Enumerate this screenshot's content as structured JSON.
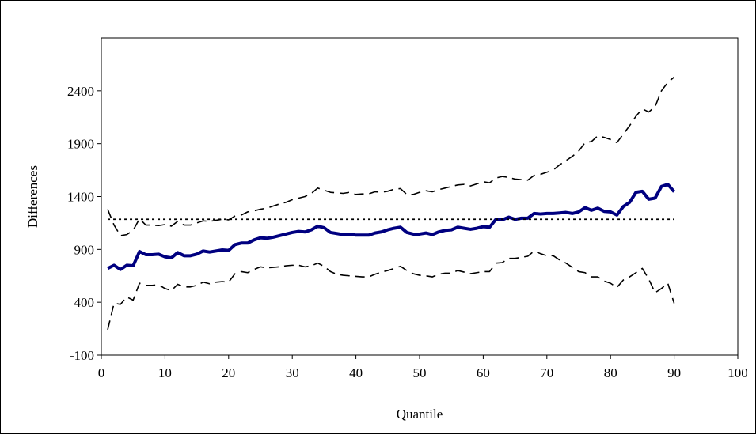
{
  "chart_data": {
    "type": "line",
    "title": "",
    "xlabel": "Quantile",
    "ylabel": "Differences",
    "xlim": [
      0,
      100
    ],
    "ylim": [
      -100,
      2900
    ],
    "xticks": [
      0,
      10,
      20,
      30,
      40,
      50,
      60,
      70,
      80,
      90,
      100
    ],
    "yticks": [
      -100,
      400,
      900,
      1400,
      1900,
      2400
    ],
    "grid": false,
    "legend": "none",
    "series": [
      {
        "style": "solid-thick",
        "color": "#000080",
        "points": [
          [
            1,
            720
          ],
          [
            2,
            750
          ],
          [
            3,
            710
          ],
          [
            4,
            750
          ],
          [
            5,
            745
          ],
          [
            6,
            880
          ],
          [
            7,
            850
          ],
          [
            8,
            850
          ],
          [
            9,
            855
          ],
          [
            10,
            830
          ],
          [
            11,
            820
          ],
          [
            12,
            870
          ],
          [
            13,
            840
          ],
          [
            14,
            840
          ],
          [
            15,
            855
          ],
          [
            16,
            885
          ],
          [
            17,
            875
          ],
          [
            18,
            885
          ],
          [
            19,
            895
          ],
          [
            20,
            890
          ],
          [
            21,
            945
          ],
          [
            22,
            960
          ],
          [
            23,
            960
          ],
          [
            24,
            990
          ],
          [
            25,
            1010
          ],
          [
            26,
            1005
          ],
          [
            27,
            1015
          ],
          [
            28,
            1030
          ],
          [
            29,
            1045
          ],
          [
            30,
            1060
          ],
          [
            31,
            1070
          ],
          [
            32,
            1065
          ],
          [
            33,
            1085
          ],
          [
            34,
            1120
          ],
          [
            35,
            1105
          ],
          [
            36,
            1060
          ],
          [
            37,
            1050
          ],
          [
            38,
            1040
          ],
          [
            39,
            1045
          ],
          [
            40,
            1035
          ],
          [
            41,
            1035
          ],
          [
            42,
            1035
          ],
          [
            43,
            1055
          ],
          [
            44,
            1065
          ],
          [
            45,
            1085
          ],
          [
            46,
            1100
          ],
          [
            47,
            1110
          ],
          [
            48,
            1060
          ],
          [
            49,
            1045
          ],
          [
            50,
            1045
          ],
          [
            51,
            1055
          ],
          [
            52,
            1040
          ],
          [
            53,
            1065
          ],
          [
            54,
            1080
          ],
          [
            55,
            1085
          ],
          [
            56,
            1110
          ],
          [
            57,
            1100
          ],
          [
            58,
            1090
          ],
          [
            59,
            1100
          ],
          [
            60,
            1115
          ],
          [
            61,
            1110
          ],
          [
            62,
            1185
          ],
          [
            63,
            1180
          ],
          [
            64,
            1205
          ],
          [
            65,
            1185
          ],
          [
            66,
            1195
          ],
          [
            67,
            1195
          ],
          [
            68,
            1240
          ],
          [
            69,
            1235
          ],
          [
            70,
            1240
          ],
          [
            71,
            1240
          ],
          [
            72,
            1245
          ],
          [
            73,
            1250
          ],
          [
            74,
            1240
          ],
          [
            75,
            1255
          ],
          [
            76,
            1295
          ],
          [
            77,
            1270
          ],
          [
            78,
            1290
          ],
          [
            79,
            1260
          ],
          [
            80,
            1255
          ],
          [
            81,
            1225
          ],
          [
            82,
            1305
          ],
          [
            83,
            1345
          ],
          [
            84,
            1440
          ],
          [
            85,
            1450
          ],
          [
            86,
            1375
          ],
          [
            87,
            1385
          ],
          [
            88,
            1495
          ],
          [
            89,
            1515
          ],
          [
            90,
            1445
          ]
        ]
      },
      {
        "style": "dashed",
        "color": "#000000",
        "points": [
          [
            1,
            1280
          ],
          [
            2,
            1130
          ],
          [
            3,
            1030
          ],
          [
            4,
            1040
          ],
          [
            5,
            1080
          ],
          [
            6,
            1190
          ],
          [
            7,
            1130
          ],
          [
            8,
            1130
          ],
          [
            9,
            1125
          ],
          [
            10,
            1135
          ],
          [
            11,
            1120
          ],
          [
            12,
            1165
          ],
          [
            13,
            1130
          ],
          [
            14,
            1130
          ],
          [
            15,
            1150
          ],
          [
            16,
            1170
          ],
          [
            17,
            1165
          ],
          [
            18,
            1175
          ],
          [
            19,
            1185
          ],
          [
            20,
            1180
          ],
          [
            21,
            1215
          ],
          [
            22,
            1225
          ],
          [
            23,
            1255
          ],
          [
            24,
            1265
          ],
          [
            25,
            1280
          ],
          [
            26,
            1290
          ],
          [
            27,
            1310
          ],
          [
            28,
            1330
          ],
          [
            29,
            1345
          ],
          [
            30,
            1370
          ],
          [
            31,
            1385
          ],
          [
            32,
            1400
          ],
          [
            33,
            1430
          ],
          [
            34,
            1480
          ],
          [
            35,
            1460
          ],
          [
            36,
            1440
          ],
          [
            37,
            1435
          ],
          [
            38,
            1430
          ],
          [
            39,
            1440
          ],
          [
            40,
            1420
          ],
          [
            41,
            1425
          ],
          [
            42,
            1425
          ],
          [
            43,
            1445
          ],
          [
            44,
            1440
          ],
          [
            45,
            1450
          ],
          [
            46,
            1470
          ],
          [
            47,
            1475
          ],
          [
            48,
            1420
          ],
          [
            49,
            1420
          ],
          [
            50,
            1440
          ],
          [
            51,
            1455
          ],
          [
            52,
            1445
          ],
          [
            53,
            1465
          ],
          [
            54,
            1480
          ],
          [
            55,
            1495
          ],
          [
            56,
            1510
          ],
          [
            57,
            1515
          ],
          [
            58,
            1500
          ],
          [
            59,
            1520
          ],
          [
            60,
            1540
          ],
          [
            61,
            1530
          ],
          [
            62,
            1575
          ],
          [
            63,
            1590
          ],
          [
            64,
            1580
          ],
          [
            65,
            1565
          ],
          [
            66,
            1560
          ],
          [
            67,
            1555
          ],
          [
            68,
            1600
          ],
          [
            69,
            1610
          ],
          [
            70,
            1630
          ],
          [
            71,
            1650
          ],
          [
            72,
            1700
          ],
          [
            73,
            1740
          ],
          [
            74,
            1780
          ],
          [
            75,
            1830
          ],
          [
            76,
            1910
          ],
          [
            77,
            1920
          ],
          [
            78,
            1975
          ],
          [
            79,
            1960
          ],
          [
            80,
            1940
          ],
          [
            81,
            1910
          ],
          [
            82,
            1990
          ],
          [
            83,
            2070
          ],
          [
            84,
            2160
          ],
          [
            85,
            2230
          ],
          [
            86,
            2200
          ],
          [
            87,
            2250
          ],
          [
            88,
            2400
          ],
          [
            89,
            2480
          ],
          [
            90,
            2530
          ]
        ]
      },
      {
        "style": "dashed",
        "color": "#000000",
        "points": [
          [
            1,
            140
          ],
          [
            2,
            390
          ],
          [
            3,
            380
          ],
          [
            4,
            450
          ],
          [
            5,
            420
          ],
          [
            6,
            580
          ],
          [
            7,
            560
          ],
          [
            8,
            560
          ],
          [
            9,
            565
          ],
          [
            10,
            530
          ],
          [
            11,
            510
          ],
          [
            12,
            570
          ],
          [
            13,
            545
          ],
          [
            14,
            545
          ],
          [
            15,
            560
          ],
          [
            16,
            590
          ],
          [
            17,
            575
          ],
          [
            18,
            590
          ],
          [
            19,
            595
          ],
          [
            20,
            590
          ],
          [
            21,
            670
          ],
          [
            22,
            690
          ],
          [
            23,
            680
          ],
          [
            24,
            710
          ],
          [
            25,
            735
          ],
          [
            26,
            725
          ],
          [
            27,
            730
          ],
          [
            28,
            735
          ],
          [
            29,
            745
          ],
          [
            30,
            750
          ],
          [
            31,
            750
          ],
          [
            32,
            735
          ],
          [
            33,
            745
          ],
          [
            34,
            770
          ],
          [
            35,
            740
          ],
          [
            36,
            690
          ],
          [
            37,
            665
          ],
          [
            38,
            655
          ],
          [
            39,
            650
          ],
          [
            40,
            645
          ],
          [
            41,
            640
          ],
          [
            42,
            640
          ],
          [
            43,
            665
          ],
          [
            44,
            685
          ],
          [
            45,
            700
          ],
          [
            46,
            720
          ],
          [
            47,
            740
          ],
          [
            48,
            700
          ],
          [
            49,
            670
          ],
          [
            50,
            655
          ],
          [
            51,
            650
          ],
          [
            52,
            640
          ],
          [
            53,
            665
          ],
          [
            54,
            675
          ],
          [
            55,
            675
          ],
          [
            56,
            700
          ],
          [
            57,
            685
          ],
          [
            58,
            670
          ],
          [
            59,
            680
          ],
          [
            60,
            690
          ],
          [
            61,
            690
          ],
          [
            62,
            770
          ],
          [
            63,
            775
          ],
          [
            64,
            815
          ],
          [
            65,
            815
          ],
          [
            66,
            825
          ],
          [
            67,
            835
          ],
          [
            68,
            885
          ],
          [
            69,
            860
          ],
          [
            70,
            840
          ],
          [
            71,
            840
          ],
          [
            72,
            800
          ],
          [
            73,
            770
          ],
          [
            74,
            730
          ],
          [
            75,
            690
          ],
          [
            76,
            680
          ],
          [
            77,
            640
          ],
          [
            78,
            640
          ],
          [
            79,
            600
          ],
          [
            80,
            580
          ],
          [
            81,
            540
          ],
          [
            82,
            610
          ],
          [
            83,
            640
          ],
          [
            84,
            680
          ],
          [
            85,
            720
          ],
          [
            86,
            620
          ],
          [
            87,
            490
          ],
          [
            88,
            530
          ],
          [
            89,
            580
          ],
          [
            90,
            390
          ]
        ]
      },
      {
        "style": "dotted",
        "color": "#000000",
        "points": [
          [
            1,
            1185
          ],
          [
            90,
            1185
          ]
        ]
      }
    ]
  }
}
